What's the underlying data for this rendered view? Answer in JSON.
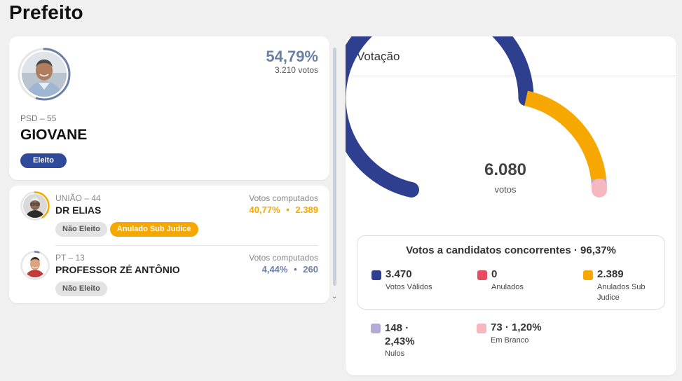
{
  "page": {
    "title": "Prefeito"
  },
  "winner": {
    "party": "PSD – 55",
    "name": "GIOVANE",
    "percent": "54,79%",
    "votes": "3.210 votos",
    "badge": "Eleito",
    "share": 0.5479,
    "ring_color": "#6b7fa7"
  },
  "candidates": [
    {
      "party": "UNIÃO – 44",
      "name": "DR ELIAS",
      "votes_label": "Votos computados",
      "percent": "40,77%",
      "separator": "•",
      "votes": "2.389",
      "badges": [
        "Não Eleito",
        "Anulado Sub Judice"
      ],
      "share": 0.4077,
      "color": "#f7a800"
    },
    {
      "party": "PT – 13",
      "name": "PROFESSOR ZÉ ANTÔNIO",
      "votes_label": "Votos computados",
      "percent": "4,44%",
      "separator": "•",
      "votes": "260",
      "badges": [
        "Não Eleito"
      ],
      "share": 0.0444,
      "color": "#6b7fa7"
    }
  ],
  "votacao": {
    "title": "Votação",
    "total": "6.080",
    "total_label": "votos",
    "summary_title": "Votos a candidatos concorrentes · 96,37%",
    "gauge_segments": [
      {
        "name": "Votos Válidos",
        "value": 3470,
        "color": "#2f3f8f"
      },
      {
        "name": "Anulados Sub Judice",
        "value": 2389,
        "color": "#f7a800"
      },
      {
        "name": "Nulos",
        "value": 148,
        "color": "#b3aad6"
      },
      {
        "name": "Em Branco",
        "value": 73,
        "color": "#f7b7c0"
      }
    ],
    "legend": [
      {
        "value": "3.470",
        "label": "Votos Válidos",
        "color": "#2f3f8f"
      },
      {
        "value": "0",
        "label": "Anulados",
        "color": "#e84a5f"
      },
      {
        "value": "2.389",
        "label": "Anulados Sub Judice",
        "color": "#f7a800"
      },
      {
        "value": "148 · 2,43%",
        "label": "Nulos",
        "color": "#b3aad6"
      },
      {
        "value": "73 · 1,20%",
        "label": "Em Branco",
        "color": "#f7b7c0"
      }
    ]
  }
}
